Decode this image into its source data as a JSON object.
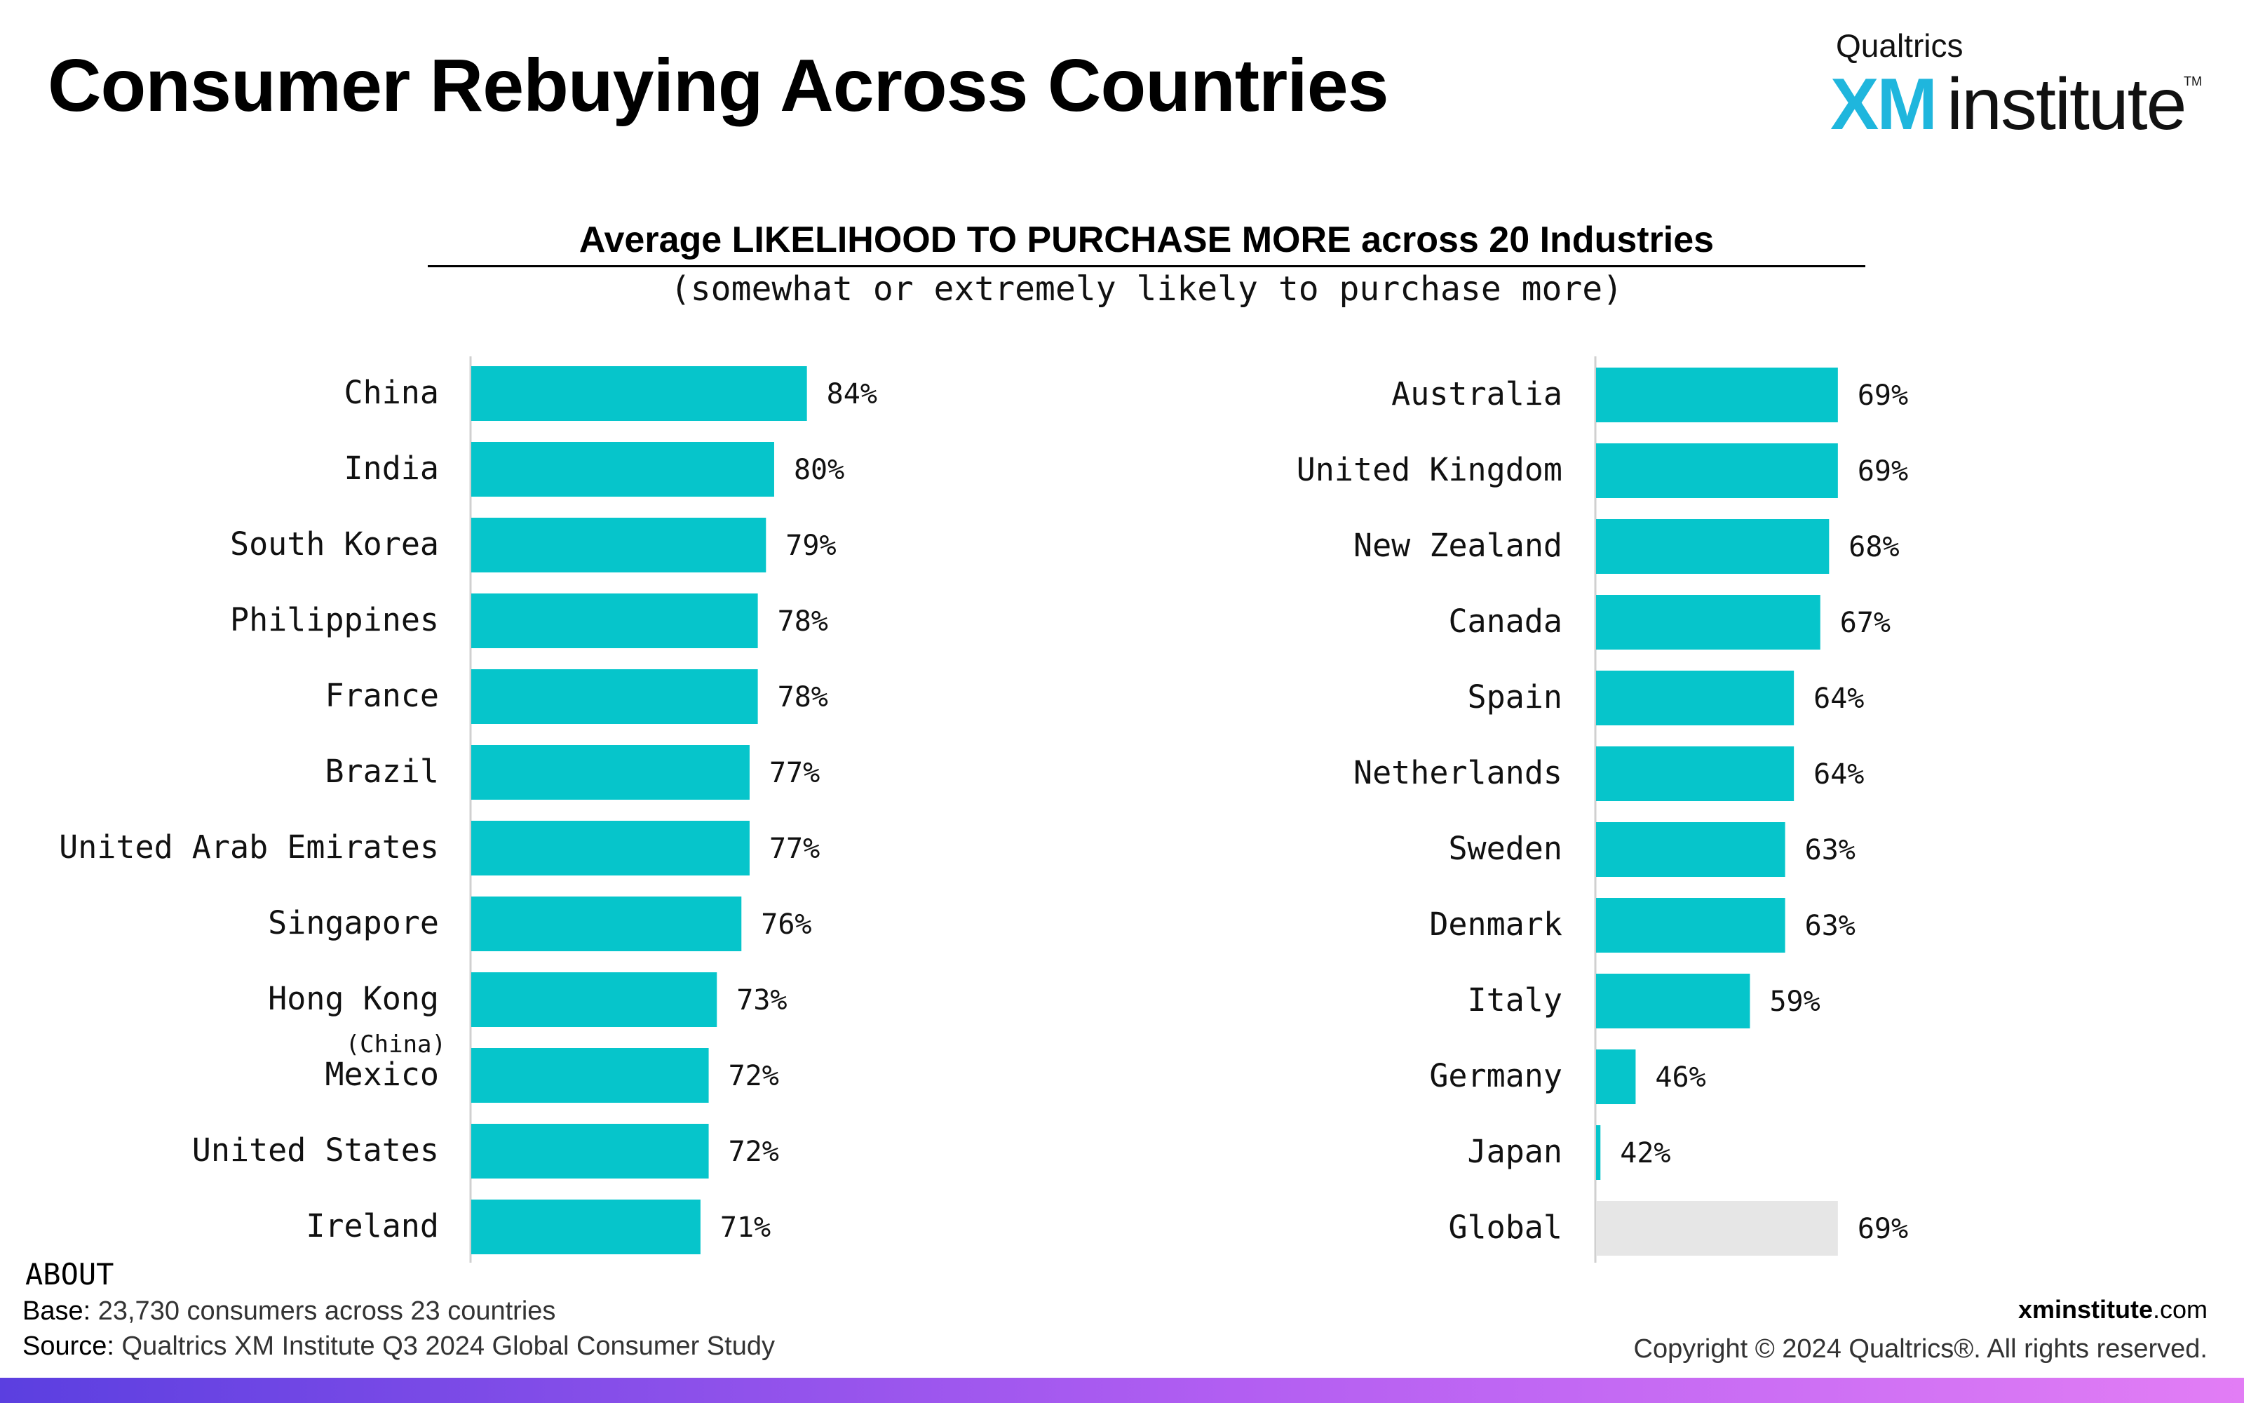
{
  "page_title": "Consumer Rebuying Across Countries",
  "logo": {
    "brand": "Qualtrics",
    "xm": "XM",
    "word": "institute",
    "tm": "TM"
  },
  "chart_title": "Average LIKELIHOOD TO PURCHASE MORE across 20 Industries",
  "chart_note": "(somewhat or extremely likely to purchase more)",
  "colors": {
    "bar": "#06c5cb",
    "global_bar": "#e6e6e6",
    "axis": "#d0d0d0",
    "footer_gradient": [
      "#5b3fe0",
      "#e27df5"
    ]
  },
  "chart_data": [
    {
      "type": "bar",
      "orientation": "horizontal",
      "categories": [
        "China",
        "India",
        "South Korea",
        "Philippines",
        "France",
        "Brazil",
        "United Arab Emirates",
        "Singapore",
        "Hong Kong",
        "Mexico",
        "United States",
        "Ireland"
      ],
      "category_sublabels": [
        "",
        "",
        "",
        "",
        "",
        "",
        "",
        "",
        "(China)",
        "",
        "",
        ""
      ],
      "values": [
        84,
        80,
        79,
        78,
        78,
        77,
        77,
        76,
        73,
        72,
        72,
        71
      ],
      "value_labels": [
        "84%",
        "80%",
        "79%",
        "78%",
        "78%",
        "77%",
        "77%",
        "76%",
        "73%",
        "72%",
        "72%",
        "71%"
      ],
      "unit": "%"
    },
    {
      "type": "bar",
      "orientation": "horizontal",
      "categories": [
        "Australia",
        "United Kingdom",
        "New Zealand",
        "Canada",
        "Spain",
        "Netherlands",
        "Sweden",
        "Denmark",
        "Italy",
        "Germany",
        "Japan",
        "Global"
      ],
      "category_sublabels": [
        "",
        "",
        "",
        "",
        "",
        "",
        "",
        "",
        "",
        "",
        "",
        ""
      ],
      "values": [
        69,
        69,
        68,
        67,
        64,
        64,
        63,
        63,
        59,
        46,
        42,
        69
      ],
      "value_labels": [
        "69%",
        "69%",
        "68%",
        "67%",
        "64%",
        "64%",
        "63%",
        "63%",
        "59%",
        "46%",
        "42%",
        "69%"
      ],
      "highlight_category": "Global",
      "unit": "%"
    }
  ],
  "footer": {
    "about": "ABOUT",
    "base_label": "Base:",
    "base_text": "23,730 consumers across 23 countries",
    "source_label": "Source:",
    "source_text": "Qualtrics XM Institute Q3 2024 Global Consumer Study",
    "site_bold": "xminstitute",
    "site_rest": ".com",
    "copyright": "Copyright © 2024 Qualtrics®. All rights reserved."
  }
}
